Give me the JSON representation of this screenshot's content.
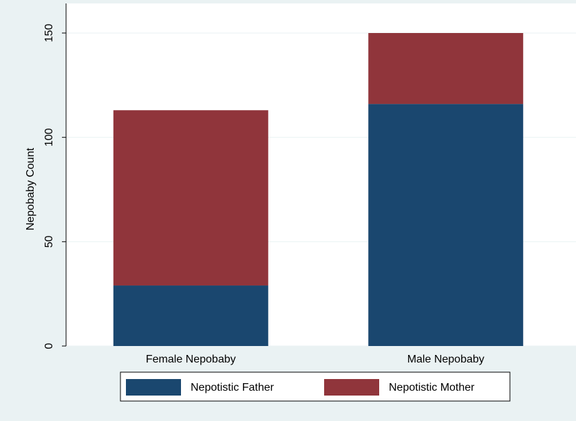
{
  "chart_data": {
    "type": "stacked_bar",
    "y_label": "Nepobaby Count",
    "categories": [
      "Female Nepobaby",
      "Male Nepobaby"
    ],
    "series": [
      {
        "name": "Nepotistic Father",
        "color": "#1a476f",
        "values": [
          29,
          116
        ]
      },
      {
        "name": "Nepotistic Mother",
        "color": "#90353b",
        "values": [
          84,
          34
        ]
      }
    ],
    "ylim": [
      0,
      150
    ],
    "yticks": [
      0,
      50,
      100,
      150
    ],
    "grid": true
  }
}
